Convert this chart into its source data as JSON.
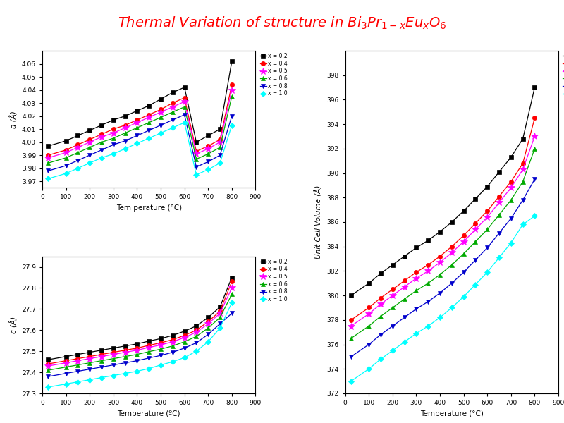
{
  "title": "Thermal Variation of structure in Bi$_3$Pr$_{1-x}$Eu$_x$O$_6$",
  "x_values": [
    25,
    100,
    150,
    200,
    250,
    300,
    350,
    400,
    450,
    500,
    550,
    600,
    650,
    700,
    750,
    800
  ],
  "series_labels": [
    "x = 0.2",
    "x = 0.4",
    "x = 0.5",
    "x = 0.6",
    "x = 0.8",
    "x = 1.0"
  ],
  "colors": [
    "black",
    "red",
    "#ff00ff",
    "#00aa00",
    "#0000cc",
    "cyan"
  ],
  "markers": [
    "s",
    "o",
    "*",
    "^",
    "v",
    "D"
  ],
  "a_data": [
    [
      3.997,
      4.001,
      4.005,
      4.009,
      4.013,
      4.017,
      4.02,
      4.024,
      4.028,
      4.033,
      4.038,
      4.042,
      4.0,
      4.005,
      4.01,
      4.062
    ],
    [
      3.99,
      3.994,
      3.998,
      4.002,
      4.006,
      4.01,
      4.013,
      4.017,
      4.021,
      4.025,
      4.03,
      4.034,
      3.993,
      3.997,
      4.002,
      4.044
    ],
    [
      3.988,
      3.992,
      3.996,
      4.0,
      4.004,
      4.007,
      4.011,
      4.015,
      4.019,
      4.023,
      4.027,
      4.031,
      3.991,
      3.995,
      4.0,
      4.04
    ],
    [
      3.984,
      3.988,
      3.992,
      3.996,
      4.0,
      4.003,
      4.007,
      4.011,
      4.015,
      4.019,
      4.023,
      4.027,
      3.987,
      3.991,
      3.996,
      4.035
    ],
    [
      3.978,
      3.982,
      3.986,
      3.99,
      3.994,
      3.998,
      4.001,
      4.005,
      4.009,
      4.013,
      4.017,
      4.021,
      3.981,
      3.985,
      3.99,
      4.02
    ],
    [
      3.972,
      3.976,
      3.98,
      3.984,
      3.988,
      3.991,
      3.995,
      3.999,
      4.003,
      4.007,
      4.011,
      4.015,
      3.975,
      3.979,
      3.984,
      4.013
    ]
  ],
  "c_data": [
    [
      27.46,
      27.475,
      27.485,
      27.495,
      27.505,
      27.515,
      27.525,
      27.535,
      27.548,
      27.56,
      27.575,
      27.595,
      27.62,
      27.66,
      27.71,
      27.85
    ],
    [
      27.44,
      27.455,
      27.465,
      27.475,
      27.485,
      27.495,
      27.505,
      27.515,
      27.528,
      27.54,
      27.555,
      27.575,
      27.6,
      27.64,
      27.69,
      27.83
    ],
    [
      27.43,
      27.445,
      27.455,
      27.465,
      27.475,
      27.485,
      27.495,
      27.505,
      27.518,
      27.53,
      27.545,
      27.565,
      27.59,
      27.63,
      27.68,
      27.8
    ],
    [
      27.41,
      27.425,
      27.435,
      27.445,
      27.455,
      27.465,
      27.475,
      27.485,
      27.498,
      27.51,
      27.525,
      27.545,
      27.57,
      27.61,
      27.66,
      27.77
    ],
    [
      27.38,
      27.395,
      27.405,
      27.415,
      27.425,
      27.435,
      27.445,
      27.455,
      27.468,
      27.48,
      27.495,
      27.515,
      27.54,
      27.58,
      27.63,
      27.68
    ],
    [
      27.33,
      27.345,
      27.355,
      27.365,
      27.375,
      27.385,
      27.395,
      27.405,
      27.418,
      27.435,
      27.45,
      27.47,
      27.5,
      27.545,
      27.61,
      27.73
    ]
  ],
  "v_data": [
    [
      380.0,
      381.0,
      381.8,
      382.5,
      383.2,
      383.9,
      384.5,
      385.2,
      386.0,
      386.9,
      387.9,
      388.9,
      390.1,
      391.3,
      392.8,
      397.0
    ],
    [
      378.0,
      379.0,
      379.8,
      380.5,
      381.2,
      381.9,
      382.5,
      383.2,
      384.0,
      384.9,
      385.9,
      386.9,
      388.1,
      389.3,
      390.8,
      394.5
    ],
    [
      377.5,
      378.5,
      379.3,
      380.0,
      380.7,
      381.4,
      382.0,
      382.7,
      383.5,
      384.4,
      385.4,
      386.4,
      387.6,
      388.8,
      390.3,
      393.0
    ],
    [
      376.5,
      377.5,
      378.3,
      379.0,
      379.7,
      380.4,
      381.0,
      381.7,
      382.5,
      383.4,
      384.4,
      385.4,
      386.6,
      387.8,
      389.3,
      392.0
    ],
    [
      375.0,
      376.0,
      376.8,
      377.5,
      378.2,
      378.9,
      379.5,
      380.2,
      381.0,
      381.9,
      382.9,
      383.9,
      385.1,
      386.3,
      387.8,
      389.5
    ],
    [
      373.0,
      374.0,
      374.8,
      375.5,
      376.2,
      376.9,
      377.5,
      378.2,
      379.0,
      379.9,
      380.9,
      381.9,
      383.1,
      384.3,
      385.8,
      386.5
    ]
  ],
  "a_ylim": [
    3.965,
    4.07
  ],
  "c_ylim": [
    27.3,
    27.95
  ],
  "v_ylim": [
    372,
    400
  ],
  "xlim": [
    0,
    900
  ],
  "a_yticks": [
    3.97,
    3.98,
    3.99,
    4.0,
    4.01,
    4.02,
    4.03,
    4.04,
    4.05,
    4.06
  ],
  "c_yticks": [
    27.3,
    27.4,
    27.5,
    27.6,
    27.7,
    27.8,
    27.9
  ],
  "v_yticks": [
    372,
    374,
    376,
    378,
    380,
    382,
    384,
    386,
    388,
    390,
    392,
    394,
    396,
    398
  ],
  "xticks": [
    0,
    100,
    200,
    300,
    400,
    500,
    600,
    700,
    800,
    900
  ]
}
